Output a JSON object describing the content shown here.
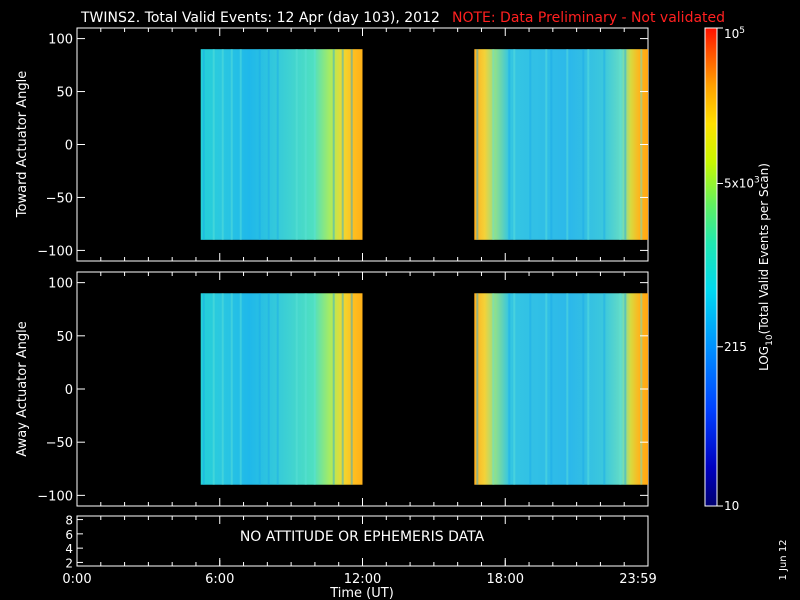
{
  "header": {
    "title": "TWINS2. Total Valid Events: 12 Apr (day 103), 2012",
    "note": "NOTE: Data Preliminary - Not validated",
    "note_color": "#ff2020"
  },
  "footer": {
    "date_stamp": "1 Jun 12"
  },
  "chart_data": [
    {
      "type": "heatmap",
      "ylabel": "Toward Actuator Angle",
      "ylim": [
        -110,
        110
      ],
      "yticks": [
        "100",
        "50",
        "0",
        "−50",
        "−100"
      ],
      "xlim": [
        0,
        24
      ],
      "data_blocks": [
        {
          "t_start": 5.2,
          "t_end": 12.0,
          "angle_range": [
            -90,
            90
          ]
        },
        {
          "t_start": 16.7,
          "t_end": 24.0,
          "angle_range": [
            -90,
            90
          ]
        }
      ]
    },
    {
      "type": "heatmap",
      "ylabel": "Away Actuator Angle",
      "ylim": [
        -110,
        110
      ],
      "yticks": [
        "100",
        "50",
        "0",
        "−50",
        "−100"
      ],
      "xlim": [
        0,
        24
      ],
      "data_blocks": [
        {
          "t_start": 5.2,
          "t_end": 12.0,
          "angle_range": [
            -90,
            90
          ]
        },
        {
          "t_start": 16.7,
          "t_end": 24.0,
          "angle_range": [
            -90,
            90
          ]
        }
      ]
    },
    {
      "type": "line",
      "ylim": [
        1.5,
        8.5
      ],
      "yticks": [
        "8",
        "6",
        "4",
        "2"
      ],
      "annotation": "NO ATTITUDE OR EPHEMERIS DATA",
      "xlabel": "Time (UT)",
      "xtick_labels": [
        "0:00",
        "6:00",
        "12:00",
        "18:00",
        "23:59"
      ]
    }
  ],
  "colorbar": {
    "label": "LOG10(Total Valid Events per Scan)",
    "ticks": [
      {
        "base": "10",
        "exp": "5"
      },
      {
        "base": "5x10",
        "exp": "3"
      },
      {
        "base": "215",
        "exp": ""
      },
      {
        "base": "10",
        "exp": ""
      }
    ],
    "scale": "log",
    "range": [
      10,
      100000
    ]
  }
}
